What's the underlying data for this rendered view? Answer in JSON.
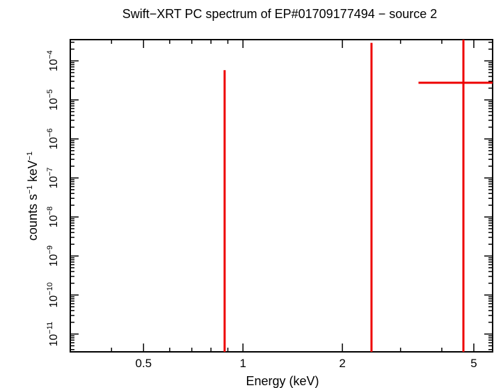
{
  "chart_data": {
    "type": "scatter",
    "title": "Swift−XRT PC spectrum of EP#01709177494 − source 2",
    "xlabel": "Energy (keV)",
    "ylabel_parts": {
      "base": "counts s",
      "exp1": "−1",
      "mid": " keV",
      "exp2": "−1"
    },
    "x_scale": "log",
    "y_scale": "log",
    "xlim": [
      0.3,
      5.7
    ],
    "ylim": [
      3.5e-12,
      0.00035
    ],
    "x_ticks": [
      {
        "value": 0.5,
        "label": "0.5"
      },
      {
        "value": 1,
        "label": "1"
      },
      {
        "value": 2,
        "label": "2"
      },
      {
        "value": 5,
        "label": "5"
      }
    ],
    "y_ticks": [
      {
        "value": 1e-11,
        "base": "10",
        "exp": "−11"
      },
      {
        "value": 1e-10,
        "base": "10",
        "exp": "−10"
      },
      {
        "value": 1e-09,
        "base": "10",
        "exp": "−9"
      },
      {
        "value": 1e-08,
        "base": "10",
        "exp": "−8"
      },
      {
        "value": 1e-07,
        "base": "10",
        "exp": "−7"
      },
      {
        "value": 1e-06,
        "base": "10",
        "exp": "−6"
      },
      {
        "value": 1e-05,
        "base": "10",
        "exp": "−5"
      },
      {
        "value": 0.0001,
        "base": "10",
        "exp": "−4"
      }
    ],
    "series": [
      {
        "color": "#ee0000",
        "points": [
          {
            "x": 0.88,
            "y": null,
            "y_lo": 3.5e-12,
            "y_hi": 5.8e-05
          },
          {
            "x": 2.45,
            "y": null,
            "y_lo": 3.5e-12,
            "y_hi": 0.00029
          },
          {
            "x": 4.65,
            "y": 2.75e-05,
            "x_lo": 3.4,
            "x_hi": 5.7,
            "y_lo": 3.5e-12,
            "y_hi": 0.00035
          }
        ]
      }
    ]
  }
}
